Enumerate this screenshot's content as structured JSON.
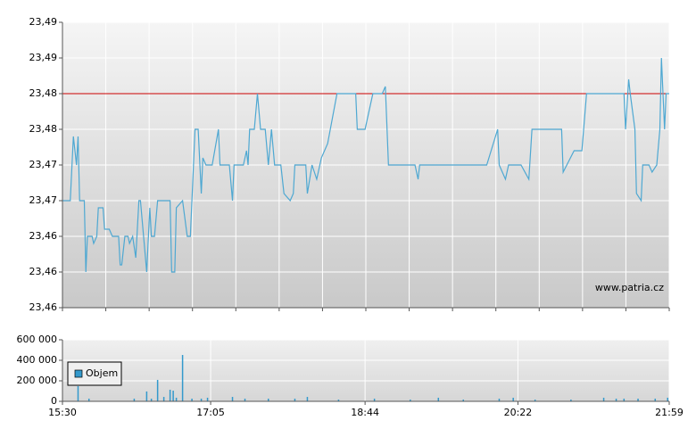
{
  "chart_data": [
    {
      "type": "line",
      "x": [
        "15:30",
        "15:35",
        "15:37",
        "15:39",
        "15:40",
        "15:41",
        "15:44",
        "15:45",
        "15:46",
        "15:49",
        "15:50",
        "15:52",
        "15:53",
        "15:56",
        "15:57",
        "16:00",
        "16:02",
        "16:06",
        "16:07",
        "16:08",
        "16:10",
        "16:12",
        "16:13",
        "16:15",
        "16:17",
        "16:19",
        "16:20",
        "16:24",
        "16:26",
        "16:27",
        "16:29",
        "16:31",
        "16:39",
        "16:40",
        "16:42",
        "16:43",
        "16:47",
        "16:50",
        "16:52",
        "16:55",
        "16:57",
        "16:59",
        "17:00",
        "17:02",
        "17:06",
        "17:10",
        "17:11",
        "17:17",
        "17:19",
        "17:20",
        "17:26",
        "17:28",
        "17:29",
        "17:30",
        "17:33",
        "17:35",
        "17:37",
        "17:40",
        "17:42",
        "17:44",
        "17:46",
        "17:50",
        "17:52",
        "17:56",
        "17:58",
        "17:59",
        "18:06",
        "18:07",
        "18:10",
        "18:13",
        "18:16",
        "18:20",
        "18:26",
        "18:38",
        "18:39",
        "18:44",
        "18:49",
        "18:51",
        "18:55",
        "18:57",
        "18:59",
        "19:16",
        "19:18",
        "19:19",
        "20:02",
        "20:09",
        "20:10",
        "20:14",
        "20:16",
        "20:23",
        "20:24",
        "20:29",
        "20:31",
        "20:50",
        "20:51",
        "20:58",
        "21:03",
        "21:06",
        "21:30",
        "21:31",
        "21:33",
        "21:34",
        "21:37",
        "21:38",
        "21:41",
        "21:42",
        "21:46",
        "21:48",
        "21:51",
        "21:53",
        "21:54",
        "21:56",
        "21:57",
        "21:59"
      ],
      "series": [
        {
          "color": "#4ea8d2",
          "values": [
            23.47,
            23.47,
            23.479,
            23.475,
            23.479,
            23.47,
            23.47,
            23.46,
            23.465,
            23.465,
            23.464,
            23.465,
            23.469,
            23.469,
            23.466,
            23.466,
            23.465,
            23.465,
            23.461,
            23.461,
            23.465,
            23.465,
            23.464,
            23.465,
            23.462,
            23.47,
            23.47,
            23.46,
            23.469,
            23.465,
            23.465,
            23.47,
            23.47,
            23.46,
            23.46,
            23.469,
            23.47,
            23.465,
            23.465,
            23.48,
            23.48,
            23.471,
            23.476,
            23.475,
            23.475,
            23.48,
            23.475,
            23.475,
            23.47,
            23.475,
            23.475,
            23.477,
            23.475,
            23.48,
            23.48,
            23.485,
            23.48,
            23.48,
            23.475,
            23.48,
            23.475,
            23.475,
            23.471,
            23.47,
            23.471,
            23.475,
            23.475,
            23.471,
            23.475,
            23.473,
            23.476,
            23.478,
            23.485,
            23.485,
            23.48,
            23.48,
            23.485,
            23.485,
            23.485,
            23.486,
            23.475,
            23.475,
            23.473,
            23.475,
            23.475,
            23.48,
            23.475,
            23.473,
            23.475,
            23.475,
            23.475,
            23.473,
            23.48,
            23.48,
            23.474,
            23.477,
            23.477,
            23.485,
            23.485,
            23.48,
            23.487,
            23.485,
            23.48,
            23.471,
            23.47,
            23.475,
            23.475,
            23.474,
            23.475,
            23.48,
            23.49,
            23.48,
            23.485,
            23.485
          ]
        }
      ],
      "xlim": [
        "15:30",
        "21:59"
      ],
      "ylim": [
        23.455,
        23.495
      ],
      "yticks": [
        {
          "value": 23.455,
          "label": "23,46"
        },
        {
          "value": 23.46,
          "label": "23,46"
        },
        {
          "value": 23.465,
          "label": "23,46"
        },
        {
          "value": 23.47,
          "label": "23,47"
        },
        {
          "value": 23.475,
          "label": "23,47"
        },
        {
          "value": 23.48,
          "label": "23,48"
        },
        {
          "value": 23.485,
          "label": "23,48"
        },
        {
          "value": 23.49,
          "label": "23,49"
        },
        {
          "value": 23.495,
          "label": "23,49"
        }
      ],
      "reference_line": {
        "value": 23.485,
        "color": "#cc0000"
      },
      "grid": true,
      "annotation": "www.patria.cz"
    },
    {
      "type": "bar",
      "x": [
        "15:40",
        "15:47",
        "16:16",
        "16:24",
        "16:27",
        "16:31",
        "16:35",
        "16:39",
        "16:41",
        "16:43",
        "16:47",
        "16:53",
        "16:59",
        "17:03",
        "17:19",
        "17:27",
        "17:42",
        "17:59",
        "18:07",
        "18:27",
        "18:50",
        "19:13",
        "19:31",
        "19:47",
        "20:10",
        "20:19",
        "20:33",
        "20:56",
        "21:17",
        "21:25",
        "21:30",
        "21:39",
        "21:50",
        "21:58"
      ],
      "series": [
        {
          "name": "Objem",
          "color": "#3399cc",
          "values": [
            148000,
            26000,
            26000,
            96000,
            26000,
            209000,
            43000,
            113000,
            104000,
            35000,
            452000,
            26000,
            26000,
            35000,
            43000,
            26000,
            26000,
            26000,
            43000,
            17000,
            26000,
            17000,
            35000,
            17000,
            26000,
            35000,
            17000,
            17000,
            35000,
            26000,
            26000,
            26000,
            26000,
            35000
          ]
        }
      ],
      "xlim": [
        "15:30",
        "21:59"
      ],
      "xticks": [
        "15:30",
        "17:05",
        "18:44",
        "20:22",
        "21:59"
      ],
      "ylim": [
        0,
        600000
      ],
      "yticks": [
        0,
        {
          "value": 200000,
          "label": "200 000"
        },
        {
          "value": 400000,
          "label": "400 000"
        },
        {
          "value": 600000,
          "label": "600 000"
        }
      ],
      "grid": true,
      "legend": "lower-left"
    }
  ]
}
